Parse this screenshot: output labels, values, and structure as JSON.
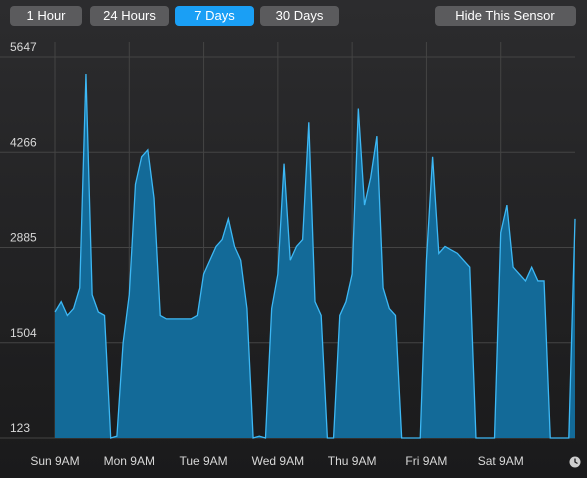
{
  "buttons": [
    {
      "label": "1 Hour",
      "selected": false
    },
    {
      "label": "24 Hours",
      "selected": false
    },
    {
      "label": "7 Days",
      "selected": true
    },
    {
      "label": "30 Days",
      "selected": false
    }
  ],
  "hide_button": "Hide This Sensor",
  "chart_data": {
    "type": "area",
    "color": "#136a98",
    "line_color": "#3db8f5",
    "grid": true,
    "x": [
      0,
      2,
      4,
      6,
      8,
      10,
      12,
      14,
      16,
      18,
      20,
      22,
      24,
      26,
      28,
      30,
      32,
      34,
      36,
      38,
      40,
      42,
      44,
      46,
      48,
      50,
      52,
      54,
      56,
      58,
      60,
      62,
      64,
      66,
      68,
      70,
      72,
      74,
      76,
      78,
      80,
      82,
      84,
      86,
      88,
      90,
      92,
      94,
      96,
      98,
      100,
      102,
      104,
      106,
      108,
      110,
      112,
      114,
      116,
      118,
      120,
      122,
      124,
      126,
      128,
      130,
      132,
      134,
      136,
      138,
      140,
      142,
      144,
      146,
      148,
      150,
      152,
      154,
      156,
      158,
      160,
      162,
      164,
      166,
      168
    ],
    "values": [
      1950,
      2100,
      1900,
      2000,
      2300,
      5400,
      2200,
      1950,
      1900,
      123,
      150,
      1500,
      2200,
      3800,
      4200,
      4300,
      3600,
      1900,
      1850,
      1850,
      1850,
      1850,
      1850,
      1900,
      2500,
      2700,
      2900,
      3000,
      3300,
      2900,
      2700,
      2000,
      123,
      150,
      123,
      2000,
      2500,
      4100,
      2700,
      2900,
      3000,
      4700,
      2100,
      1900,
      123,
      123,
      1900,
      2100,
      2500,
      4900,
      3500,
      3900,
      4500,
      2300,
      2000,
      1900,
      123,
      123,
      123,
      123,
      2700,
      4200,
      2800,
      2900,
      2850,
      2800,
      2700,
      2600,
      123,
      123,
      123,
      123,
      3100,
      3500,
      2600,
      2500,
      2400,
      2600,
      2400,
      2400,
      123,
      123,
      123,
      123,
      3300
    ],
    "xlim": [
      0,
      168
    ],
    "xticks": [
      {
        "value": 0,
        "label": "Sun 9AM"
      },
      {
        "value": 24,
        "label": "Mon 9AM"
      },
      {
        "value": 48,
        "label": "Tue 9AM"
      },
      {
        "value": 72,
        "label": "Wed 9AM"
      },
      {
        "value": 96,
        "label": "Thu 9AM"
      },
      {
        "value": 120,
        "label": "Fri 9AM"
      },
      {
        "value": 144,
        "label": "Sat 9AM"
      }
    ],
    "ylim": [
      123,
      5647
    ],
    "yticks": [
      123,
      1504,
      2885,
      4266,
      5647
    ]
  }
}
